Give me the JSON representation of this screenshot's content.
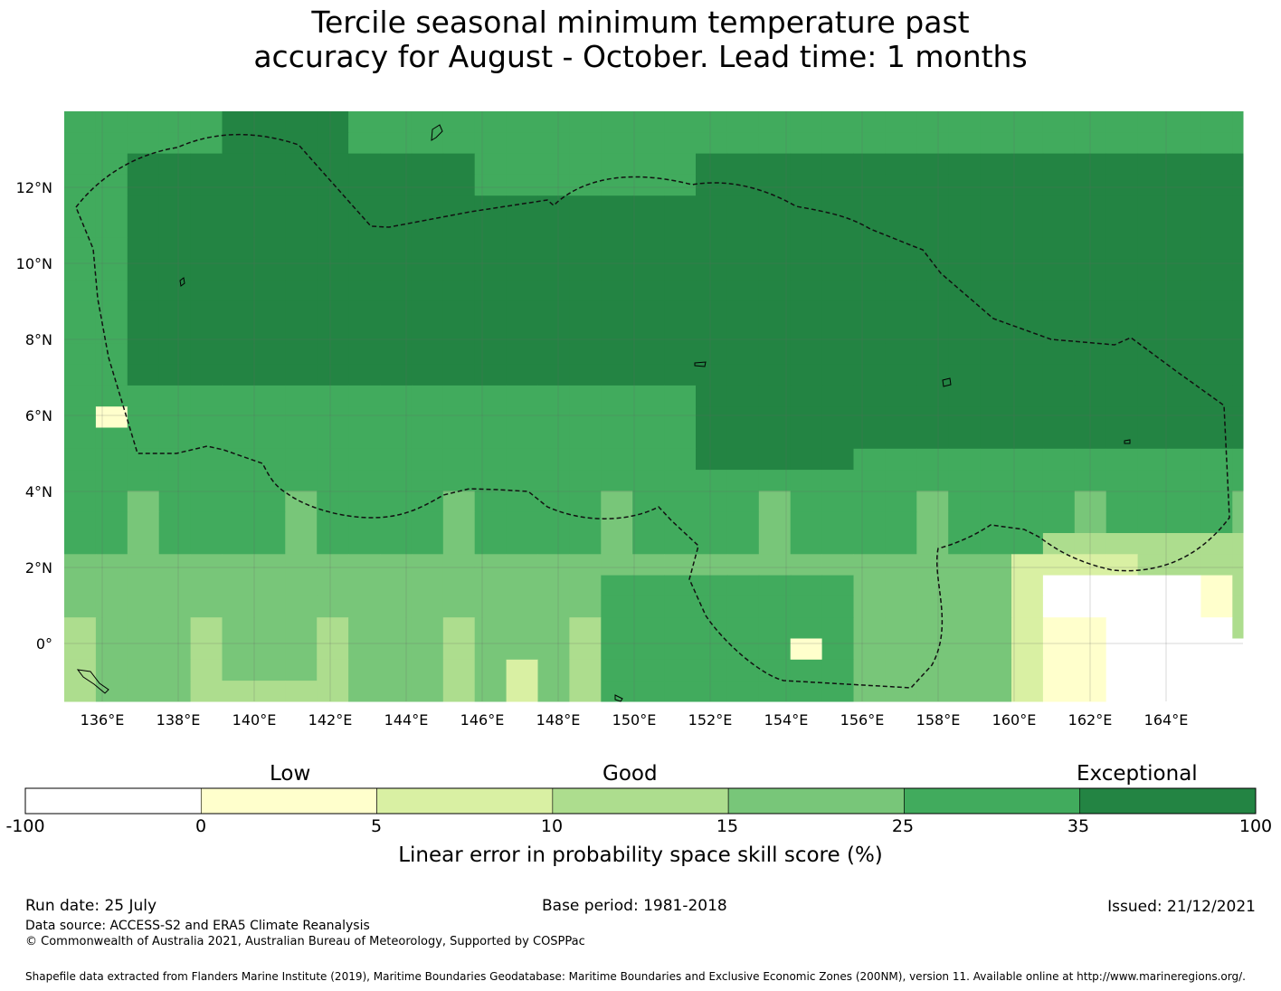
{
  "title_line1": "Tercile seasonal minimum temperature past",
  "title_line2": "accuracy for August - October. Lead time: 1 months",
  "map": {
    "lon_labels": [
      "136°E",
      "138°E",
      "140°E",
      "142°E",
      "144°E",
      "146°E",
      "148°E",
      "150°E",
      "152°E",
      "154°E",
      "156°E",
      "158°E",
      "160°E",
      "162°E",
      "164°E"
    ],
    "lat_labels": [
      "12°N",
      "10°N",
      "8°N",
      "6°N",
      "4°N",
      "2°N",
      "0°"
    ],
    "colors": {
      "none": "#ffffff",
      "low": "#ffffcc",
      "l5": "#d9f0a3",
      "l10": "#addd8e",
      "l15": "#78c679",
      "l25": "#41ab5d",
      "l35": "#238443"
    }
  },
  "colorbar": {
    "band_labels": {
      "low": "Low",
      "good": "Good",
      "exceptional": "Exceptional"
    },
    "ticks": [
      "-100",
      "0",
      "5",
      "10",
      "15",
      "25",
      "35",
      "100"
    ],
    "title": "Linear error in probability space skill score (%)"
  },
  "footer": {
    "run_date": "Run date: 25 July",
    "base_period": "Base period: 1981-2018",
    "issued": "Issued: 21/12/2021",
    "data_source": "Data source: ACCESS-S2 and ERA5 Climate Reanalysis",
    "copyright": "© Commonwealth of Australia 2021, Australian Bureau of Meteorology, Supported by COSPPac",
    "shapefile": "Shapefile data extracted from Flanders Marine Institute (2019), Maritime Boundaries Geodatabase: Maritime Boundaries and Exclusive Economic Zones (200NM), version 11. Available online at http://www.marineregions.org/."
  }
}
